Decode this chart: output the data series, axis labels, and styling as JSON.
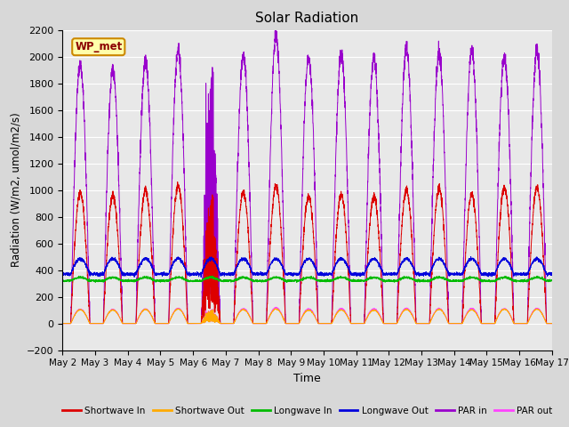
{
  "title": "Solar Radiation",
  "xlabel": "Time",
  "ylabel": "Radiation (W/m2, umol/m2/s)",
  "ylim": [
    -200,
    2200
  ],
  "yticks": [
    -200,
    0,
    200,
    400,
    600,
    800,
    1000,
    1200,
    1400,
    1600,
    1800,
    2000,
    2200
  ],
  "fig_bg_color": "#d8d8d8",
  "plot_bg_color": "#e8e8e8",
  "grid_color": "white",
  "legend_label": "WP_met",
  "series_colors": {
    "shortwave_in": "#dd0000",
    "shortwave_out": "#ffaa00",
    "longwave_in": "#00bb00",
    "longwave_out": "#0000dd",
    "par_in": "#9900cc",
    "par_out": "#ff44ff"
  },
  "series_labels": {
    "shortwave_in": "Shortwave In",
    "shortwave_out": "Shortwave Out",
    "longwave_in": "Longwave In",
    "longwave_out": "Longwave Out",
    "par_in": "PAR in",
    "par_out": "PAR out"
  },
  "n_days": 15,
  "start_day": 2,
  "points_per_day": 288
}
